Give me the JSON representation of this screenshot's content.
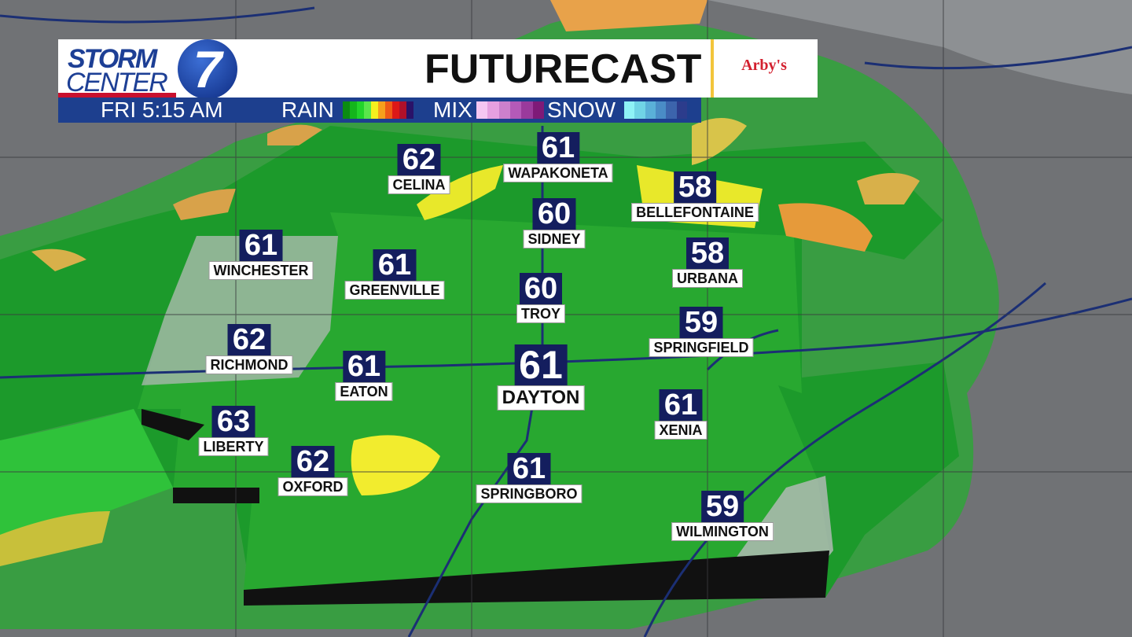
{
  "header": {
    "logo_line1": "STORM",
    "logo_line2": "CENTER",
    "logo_number": "7",
    "title": "FUTURECAST",
    "sponsor": "Arby's"
  },
  "legend": {
    "time": "FRI  5:15 AM",
    "rain_label": "RAIN",
    "mix_label": "MIX",
    "snow_label": "SNOW",
    "rain_colors": [
      "#0b8c12",
      "#14b51c",
      "#22d42a",
      "#5ae64a",
      "#f5f01e",
      "#f6a01c",
      "#ee5a16",
      "#dc1818",
      "#b0102a",
      "#2a1268"
    ],
    "mix_colors": [
      "#f6c6f2",
      "#e6a0e0",
      "#cc80cc",
      "#b45ab8",
      "#9a3a9c",
      "#7e1a78"
    ],
    "snow_colors": [
      "#8ef2f6",
      "#70d4e6",
      "#5ab0d8",
      "#4a8cc6",
      "#3c64ac",
      "#2c3c8c"
    ]
  },
  "cities": [
    {
      "name": "CELINA",
      "temp": "62"
    },
    {
      "name": "WAPAKONETA",
      "temp": "61"
    },
    {
      "name": "BELLEFONTAINE",
      "temp": "58"
    },
    {
      "name": "SIDNEY",
      "temp": "60"
    },
    {
      "name": "WINCHESTER",
      "temp": "61"
    },
    {
      "name": "GREENVILLE",
      "temp": "61"
    },
    {
      "name": "URBANA",
      "temp": "58"
    },
    {
      "name": "TROY",
      "temp": "60"
    },
    {
      "name": "SPRINGFIELD",
      "temp": "59"
    },
    {
      "name": "RICHMOND",
      "temp": "62"
    },
    {
      "name": "EATON",
      "temp": "61"
    },
    {
      "name": "DAYTON",
      "temp": "61"
    },
    {
      "name": "XENIA",
      "temp": "61"
    },
    {
      "name": "LIBERTY",
      "temp": "63"
    },
    {
      "name": "OXFORD",
      "temp": "62"
    },
    {
      "name": "SPRINGBORO",
      "temp": "61"
    },
    {
      "name": "WILMINGTON",
      "temp": "59"
    }
  ]
}
